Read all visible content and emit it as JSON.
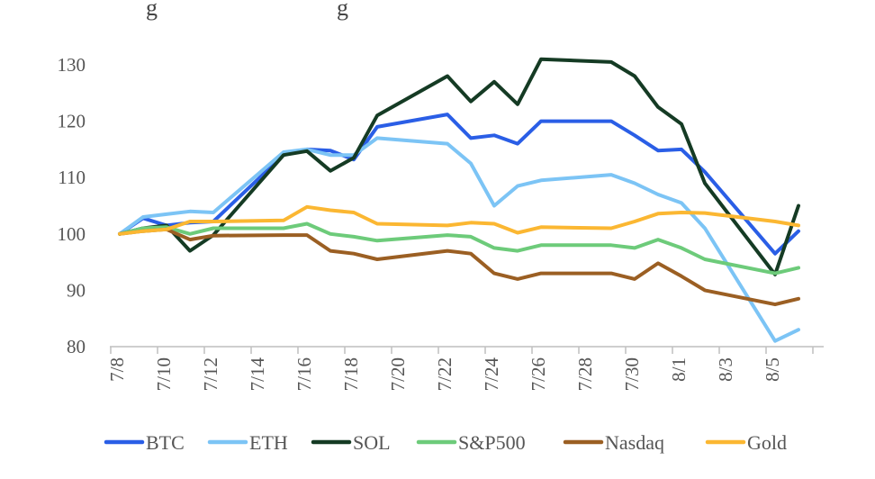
{
  "chart_data": {
    "type": "line",
    "title": "",
    "xlabel": "",
    "ylabel": "",
    "ylim": [
      80,
      130
    ],
    "yticks": [
      80,
      90,
      100,
      110,
      120,
      130
    ],
    "xtick_labels": [
      "7/8",
      "7/10",
      "7/12",
      "7/14",
      "7/16",
      "7/18",
      "7/20",
      "7/22",
      "7/24",
      "7/26",
      "7/28",
      "7/30",
      "8/1",
      "8/3",
      "8/5"
    ],
    "x_dates": [
      "7/8",
      "7/9",
      "7/10",
      "7/11",
      "7/12",
      "7/15",
      "7/16",
      "7/17",
      "7/18",
      "7/19",
      "7/22",
      "7/23",
      "7/24",
      "7/25",
      "7/26",
      "7/29",
      "7/30",
      "7/31",
      "8/1",
      "8/2",
      "8/5",
      "8/6"
    ],
    "x_index": [
      0,
      1,
      2,
      3,
      4,
      7,
      8,
      9,
      10,
      11,
      14,
      15,
      16,
      17,
      18,
      21,
      22,
      23,
      24,
      25,
      28,
      29
    ],
    "legend_position": "bottom",
    "series": [
      {
        "name": "BTC",
        "color": "#2a5ee6",
        "values": [
          100,
          102.8,
          101.5,
          102,
          102.2,
          114,
          115,
          114.8,
          113.2,
          119,
          121.2,
          117,
          117.5,
          116,
          120,
          120,
          117.5,
          114.8,
          115,
          111,
          96.5,
          100.5
        ]
      },
      {
        "name": "ETH",
        "color": "#7cc4f5",
        "values": [
          100,
          103,
          103.5,
          104,
          103.8,
          114.5,
          115,
          114,
          114,
          117,
          116,
          112.5,
          105,
          108.5,
          109.5,
          110.5,
          109,
          107,
          105.5,
          101,
          81,
          83
        ]
      },
      {
        "name": "SOL",
        "color": "#153b24",
        "values": [
          100,
          101,
          101.5,
          97,
          99.8,
          114,
          114.7,
          111.2,
          113.5,
          121,
          128,
          123.5,
          127,
          123,
          131,
          130.5,
          128,
          122.5,
          119.5,
          109,
          92.8,
          105
        ]
      },
      {
        "name": "S&P500",
        "color": "#6dcb7a",
        "values": [
          100,
          101,
          101.2,
          100,
          101,
          101,
          101.8,
          100,
          99.5,
          98.8,
          99.8,
          99.5,
          97.5,
          97,
          98,
          98,
          97.5,
          99,
          97.5,
          95.5,
          93,
          94
        ]
      },
      {
        "name": "Nasdaq",
        "color": "#9b5f23",
        "values": [
          100,
          100.5,
          100.8,
          99,
          99.7,
          99.8,
          99.8,
          97,
          96.5,
          95.5,
          97,
          96.5,
          93,
          92,
          93,
          93,
          92,
          94.8,
          92.5,
          90,
          87.5,
          88.5
        ]
      },
      {
        "name": "Gold",
        "color": "#fbb732",
        "values": [
          100,
          100.5,
          100.8,
          102.2,
          102.2,
          102.4,
          104.8,
          104.2,
          103.8,
          101.8,
          101.5,
          102,
          101.8,
          100.2,
          101.2,
          101,
          102.2,
          103.6,
          103.8,
          103.7,
          102.2,
          101.5
        ]
      }
    ]
  },
  "header": {
    "fragment_left": "g",
    "fragment_right": "g"
  }
}
